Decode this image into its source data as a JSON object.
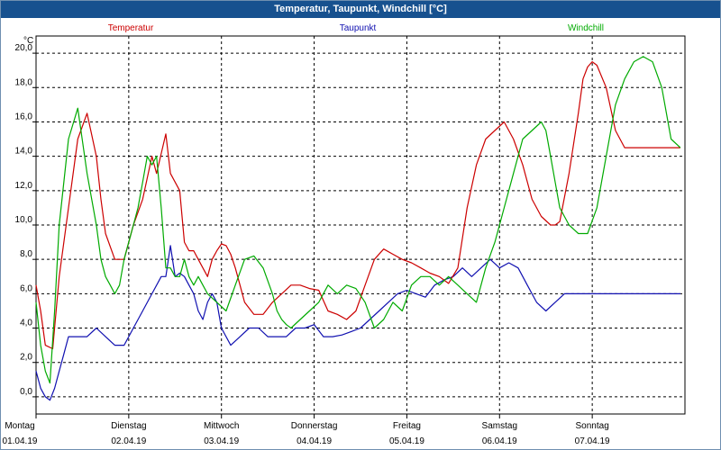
{
  "window": {
    "title": "Temperatur, Taupunkt, Windchill [°C]"
  },
  "chart_data": {
    "type": "line",
    "title": "Temperatur, Taupunkt, Windchill [°C]",
    "ylabel": "°C",
    "ylim": [
      -1.0,
      21.0
    ],
    "xlim": [
      0,
      7
    ],
    "yticks": [
      0.0,
      2.0,
      4.0,
      6.0,
      8.0,
      10.0,
      12.0,
      14.0,
      16.0,
      18.0,
      20.0
    ],
    "ytick_labels": [
      "0,0",
      "2,0",
      "4,0",
      "6,0",
      "8,0",
      "10,0",
      "12,0",
      "14,0",
      "16,0",
      "18,0",
      "20,0"
    ],
    "x_days": [
      {
        "weekday": "Montag",
        "date": "01.04.19"
      },
      {
        "weekday": "Dienstag",
        "date": "02.04.19"
      },
      {
        "weekday": "Mittwoch",
        "date": "03.04.19"
      },
      {
        "weekday": "Donnerstag",
        "date": "04.04.19"
      },
      {
        "weekday": "Freitag",
        "date": "05.04.19"
      },
      {
        "weekday": "Samstag",
        "date": "06.04.19"
      },
      {
        "weekday": "Sonntag",
        "date": "07.04.19"
      }
    ],
    "grid": true,
    "legend_placement": "top",
    "series": [
      {
        "name": "Temperatur",
        "color": "#cc0000",
        "x": [
          0,
          0.05,
          0.1,
          0.18,
          0.25,
          0.35,
          0.45,
          0.55,
          0.65,
          0.7,
          0.75,
          0.85,
          0.95,
          1.05,
          1.15,
          1.25,
          1.3,
          1.4,
          1.45,
          1.55,
          1.6,
          1.65,
          1.7,
          1.75,
          1.8,
          1.85,
          1.9,
          1.95,
          2.0,
          2.05,
          2.1,
          2.15,
          2.2,
          2.25,
          2.35,
          2.45,
          2.55,
          2.65,
          2.75,
          2.85,
          2.95,
          3.05,
          3.15,
          3.25,
          3.35,
          3.45,
          3.55,
          3.65,
          3.75,
          3.85,
          3.95,
          4.05,
          4.15,
          4.25,
          4.35,
          4.45,
          4.55,
          4.65,
          4.75,
          4.85,
          4.95,
          5.05,
          5.15,
          5.25,
          5.35,
          5.45,
          5.55,
          5.6,
          5.65,
          5.75,
          5.85,
          5.9,
          5.95,
          6.0,
          6.05,
          6.15,
          6.25,
          6.35,
          6.45,
          6.55,
          6.65,
          6.75,
          6.85,
          6.95
        ],
        "values": [
          6.5,
          5.0,
          3.0,
          2.8,
          7.0,
          11.0,
          15.0,
          16.5,
          14.0,
          11.5,
          9.5,
          8.0,
          8.0,
          10.0,
          11.5,
          14.0,
          13.0,
          15.3,
          13.0,
          12.0,
          9.0,
          8.5,
          8.5,
          8.0,
          7.5,
          7.0,
          8.0,
          8.5,
          8.9,
          8.8,
          8.3,
          7.5,
          6.5,
          5.5,
          4.8,
          4.8,
          5.5,
          6.0,
          6.5,
          6.5,
          6.3,
          6.2,
          5.0,
          4.8,
          4.5,
          5.0,
          6.5,
          8.0,
          8.6,
          8.3,
          8.0,
          7.8,
          7.5,
          7.2,
          7.0,
          6.6,
          7.5,
          11.0,
          13.5,
          15.0,
          15.5,
          16.0,
          15.0,
          13.5,
          11.5,
          10.5,
          10.0,
          10.0,
          10.2,
          13.0,
          16.5,
          18.5,
          19.2,
          19.5,
          19.3,
          18.0,
          15.5,
          14.5,
          14.5,
          14.5,
          14.5,
          14.5,
          14.5,
          14.5
        ]
      },
      {
        "name": "Taupunkt",
        "color": "#1010b0",
        "x": [
          0,
          0.05,
          0.1,
          0.15,
          0.2,
          0.25,
          0.3,
          0.35,
          0.45,
          0.55,
          0.65,
          0.75,
          0.85,
          0.95,
          1.05,
          1.15,
          1.25,
          1.35,
          1.4,
          1.45,
          1.5,
          1.55,
          1.6,
          1.65,
          1.7,
          1.75,
          1.8,
          1.85,
          1.9,
          1.95,
          2.0,
          2.1,
          2.2,
          2.3,
          2.4,
          2.5,
          2.6,
          2.7,
          2.8,
          2.9,
          3.0,
          3.1,
          3.2,
          3.3,
          3.4,
          3.5,
          3.6,
          3.7,
          3.8,
          3.9,
          4.0,
          4.1,
          4.2,
          4.3,
          4.4,
          4.5,
          4.6,
          4.7,
          4.8,
          4.9,
          5.0,
          5.1,
          5.2,
          5.3,
          5.4,
          5.5,
          5.6,
          5.7,
          5.8,
          5.9,
          6.0,
          6.1,
          6.2,
          6.3,
          6.4,
          6.5,
          6.6,
          6.7,
          6.8,
          6.9,
          6.95
        ],
        "values": [
          1.5,
          0.5,
          0.0,
          -0.2,
          0.5,
          1.5,
          2.5,
          3.5,
          3.5,
          3.5,
          4.0,
          3.5,
          3.0,
          3.0,
          4.0,
          5.0,
          6.0,
          7.0,
          7.0,
          8.8,
          7.0,
          7.2,
          7.0,
          6.5,
          6.0,
          5.0,
          4.5,
          5.5,
          6.0,
          5.5,
          4.0,
          3.0,
          3.5,
          4.0,
          4.0,
          3.5,
          3.5,
          3.5,
          4.0,
          4.0,
          4.2,
          3.5,
          3.5,
          3.6,
          3.8,
          4.0,
          4.5,
          5.0,
          5.5,
          6.0,
          6.2,
          6.0,
          5.8,
          6.5,
          6.8,
          7.0,
          7.5,
          7.0,
          7.5,
          8.0,
          7.5,
          7.8,
          7.5,
          6.5,
          5.5,
          5.0,
          5.5,
          6.0,
          6.0,
          6.0,
          6.0,
          6.0,
          6.0,
          6.0,
          6.0,
          6.0,
          6.0,
          6.0,
          6.0,
          6.0,
          6.0
        ]
      },
      {
        "name": "Windchill",
        "color": "#00aa00",
        "x": [
          0,
          0.05,
          0.1,
          0.15,
          0.2,
          0.25,
          0.35,
          0.45,
          0.55,
          0.65,
          0.7,
          0.75,
          0.8,
          0.85,
          0.9,
          0.95,
          1.05,
          1.1,
          1.15,
          1.2,
          1.25,
          1.3,
          1.35,
          1.4,
          1.45,
          1.5,
          1.55,
          1.6,
          1.65,
          1.7,
          1.75,
          1.8,
          1.85,
          1.95,
          2.05,
          2.15,
          2.25,
          2.35,
          2.45,
          2.55,
          2.6,
          2.65,
          2.7,
          2.75,
          2.85,
          2.95,
          3.05,
          3.15,
          3.25,
          3.35,
          3.45,
          3.55,
          3.65,
          3.75,
          3.85,
          3.95,
          4.05,
          4.15,
          4.25,
          4.35,
          4.45,
          4.55,
          4.65,
          4.75,
          4.85,
          4.95,
          5.05,
          5.15,
          5.25,
          5.35,
          5.45,
          5.5,
          5.55,
          5.6,
          5.65,
          5.75,
          5.85,
          5.95,
          6.05,
          6.15,
          6.25,
          6.35,
          6.45,
          6.55,
          6.65,
          6.75,
          6.85,
          6.95
        ],
        "values": [
          5.5,
          3.0,
          1.5,
          0.8,
          5.0,
          10.0,
          15.0,
          16.8,
          13.0,
          10.0,
          8.0,
          7.0,
          6.5,
          6.0,
          6.5,
          8.0,
          10.0,
          11.0,
          12.5,
          14.0,
          13.5,
          14.0,
          11.0,
          7.5,
          7.5,
          7.0,
          7.0,
          8.0,
          7.0,
          6.5,
          7.0,
          6.5,
          6.0,
          5.5,
          5.0,
          6.5,
          8.0,
          8.2,
          7.5,
          6.0,
          5.0,
          4.5,
          4.2,
          4.0,
          4.5,
          5.0,
          5.5,
          6.5,
          6.0,
          6.5,
          6.3,
          5.5,
          4.0,
          4.5,
          5.5,
          5.0,
          6.5,
          7.0,
          7.0,
          6.5,
          7.0,
          6.5,
          6.0,
          5.5,
          7.5,
          9.0,
          11.0,
          13.0,
          15.0,
          15.5,
          16.0,
          15.5,
          14.0,
          12.5,
          11.0,
          10.0,
          9.5,
          9.5,
          11.0,
          14.0,
          17.0,
          18.5,
          19.5,
          19.8,
          19.5,
          18.0,
          15.0,
          14.5
        ]
      }
    ]
  }
}
